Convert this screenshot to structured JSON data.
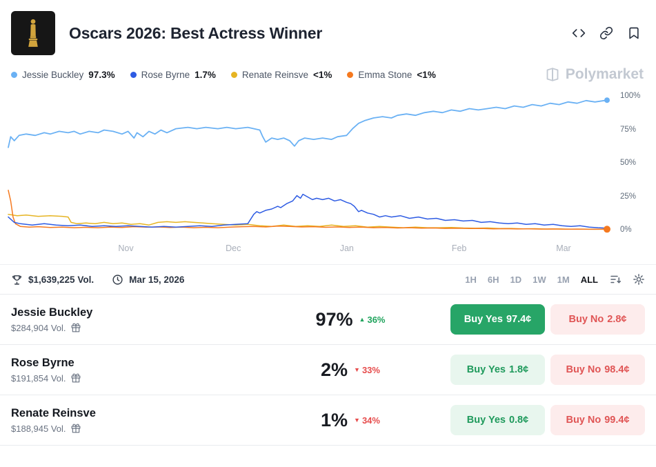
{
  "header": {
    "title": "Oscars 2026: Best Actress Winner"
  },
  "legend": [
    {
      "label": "Jessie Buckley",
      "value": "97.3%",
      "color": "#6ab1f4"
    },
    {
      "label": "Rose Byrne",
      "value": "1.7%",
      "color": "#2d5be3"
    },
    {
      "label": "Renate Reinsve",
      "value": "<1%",
      "color": "#e6b422"
    },
    {
      "label": "Emma Stone",
      "value": "<1%",
      "color": "#f5791f"
    }
  ],
  "watermark": {
    "text": "Polymarket"
  },
  "chart_data": {
    "type": "line",
    "ylim": [
      0,
      100
    ],
    "grid": false,
    "y_ticks": [
      {
        "label": "100%",
        "value": 100
      },
      {
        "label": "75%",
        "value": 75
      },
      {
        "label": "50%",
        "value": 50
      },
      {
        "label": "25%",
        "value": 25
      },
      {
        "label": "0%",
        "value": 0
      }
    ],
    "x_ticks": [
      {
        "label": "Nov",
        "pos": 0.196
      },
      {
        "label": "Dec",
        "pos": 0.373
      },
      {
        "label": "Jan",
        "pos": 0.56
      },
      {
        "label": "Feb",
        "pos": 0.745
      },
      {
        "label": "Mar",
        "pos": 0.917
      }
    ],
    "series": [
      {
        "name": "Renate Reinsve",
        "color": "#e6b422",
        "stroke_width": 1.5,
        "end_dot": false,
        "points": [
          [
            0,
            12
          ],
          [
            0.015,
            11
          ],
          [
            0.03,
            11.5
          ],
          [
            0.05,
            10.5
          ],
          [
            0.07,
            11
          ],
          [
            0.09,
            10.5
          ],
          [
            0.1,
            10
          ],
          [
            0.105,
            6
          ],
          [
            0.115,
            5
          ],
          [
            0.13,
            5.5
          ],
          [
            0.145,
            5
          ],
          [
            0.16,
            6
          ],
          [
            0.175,
            5
          ],
          [
            0.19,
            5.5
          ],
          [
            0.205,
            4.5
          ],
          [
            0.22,
            5
          ],
          [
            0.235,
            4
          ],
          [
            0.25,
            6
          ],
          [
            0.265,
            6.5
          ],
          [
            0.28,
            6
          ],
          [
            0.295,
            6.5
          ],
          [
            0.31,
            6
          ],
          [
            0.325,
            5.5
          ],
          [
            0.34,
            5
          ],
          [
            0.36,
            4.5
          ],
          [
            0.38,
            4
          ],
          [
            0.4,
            4.5
          ],
          [
            0.42,
            3.5
          ],
          [
            0.44,
            3
          ],
          [
            0.46,
            4
          ],
          [
            0.48,
            3
          ],
          [
            0.5,
            3.5
          ],
          [
            0.52,
            3
          ],
          [
            0.54,
            4
          ],
          [
            0.56,
            3
          ],
          [
            0.58,
            3.5
          ],
          [
            0.6,
            2.5
          ],
          [
            0.62,
            3
          ],
          [
            0.64,
            2.5
          ],
          [
            0.66,
            2
          ],
          [
            0.68,
            2.5
          ],
          [
            0.7,
            2
          ],
          [
            0.72,
            2
          ],
          [
            0.74,
            2.2
          ],
          [
            0.76,
            1.8
          ],
          [
            0.78,
            1.6
          ],
          [
            0.8,
            1.8
          ],
          [
            0.82,
            1.4
          ],
          [
            0.84,
            1.5
          ],
          [
            0.86,
            1.2
          ],
          [
            0.88,
            1.3
          ],
          [
            0.9,
            1
          ],
          [
            0.92,
            1.1
          ],
          [
            0.94,
            0.9
          ],
          [
            0.96,
            1
          ],
          [
            0.98,
            0.8
          ],
          [
            1,
            0.8
          ]
        ]
      },
      {
        "name": "Emma Stone",
        "color": "#f5791f",
        "stroke_width": 1.5,
        "end_dot": true,
        "dot_radius": 5,
        "points": [
          [
            0,
            30
          ],
          [
            0.004,
            22
          ],
          [
            0.008,
            10
          ],
          [
            0.012,
            5
          ],
          [
            0.02,
            3
          ],
          [
            0.035,
            2.5
          ],
          [
            0.05,
            2.8
          ],
          [
            0.07,
            2.2
          ],
          [
            0.09,
            2.5
          ],
          [
            0.11,
            2
          ],
          [
            0.13,
            2.3
          ],
          [
            0.15,
            2
          ],
          [
            0.17,
            2.5
          ],
          [
            0.19,
            2.2
          ],
          [
            0.21,
            2.8
          ],
          [
            0.23,
            2.4
          ],
          [
            0.25,
            2.6
          ],
          [
            0.27,
            2.2
          ],
          [
            0.29,
            2.5
          ],
          [
            0.31,
            2
          ],
          [
            0.33,
            2.3
          ],
          [
            0.35,
            2
          ],
          [
            0.37,
            2.4
          ],
          [
            0.39,
            2.8
          ],
          [
            0.41,
            3
          ],
          [
            0.43,
            2.6
          ],
          [
            0.45,
            3.2
          ],
          [
            0.47,
            3
          ],
          [
            0.49,
            2.6
          ],
          [
            0.51,
            2.8
          ],
          [
            0.53,
            2.3
          ],
          [
            0.55,
            2.6
          ],
          [
            0.57,
            2.2
          ],
          [
            0.59,
            2.4
          ],
          [
            0.61,
            2
          ],
          [
            0.63,
            2.2
          ],
          [
            0.65,
            1.8
          ],
          [
            0.67,
            2
          ],
          [
            0.69,
            1.7
          ],
          [
            0.71,
            1.8
          ],
          [
            0.73,
            1.5
          ],
          [
            0.75,
            1.6
          ],
          [
            0.77,
            1.4
          ],
          [
            0.79,
            1.5
          ],
          [
            0.81,
            1.2
          ],
          [
            0.83,
            1.3
          ],
          [
            0.85,
            1.1
          ],
          [
            0.87,
            1.2
          ],
          [
            0.89,
            1
          ],
          [
            0.91,
            1.1
          ],
          [
            0.93,
            0.9
          ],
          [
            0.95,
            1
          ],
          [
            0.97,
            0.8
          ],
          [
            0.99,
            0.9
          ],
          [
            1,
            0.9
          ]
        ]
      },
      {
        "name": "Rose Byrne",
        "color": "#2d5be3",
        "stroke_width": 1.5,
        "end_dot": false,
        "points": [
          [
            0,
            10
          ],
          [
            0.01,
            6
          ],
          [
            0.02,
            5
          ],
          [
            0.04,
            4
          ],
          [
            0.06,
            5
          ],
          [
            0.08,
            4
          ],
          [
            0.1,
            3.5
          ],
          [
            0.12,
            4
          ],
          [
            0.14,
            3
          ],
          [
            0.16,
            3.5
          ],
          [
            0.18,
            3
          ],
          [
            0.2,
            3.5
          ],
          [
            0.22,
            3
          ],
          [
            0.24,
            2.5
          ],
          [
            0.26,
            3
          ],
          [
            0.28,
            2.5
          ],
          [
            0.3,
            3
          ],
          [
            0.32,
            3.5
          ],
          [
            0.34,
            3
          ],
          [
            0.36,
            4
          ],
          [
            0.38,
            4.5
          ],
          [
            0.4,
            5
          ],
          [
            0.41,
            12
          ],
          [
            0.415,
            14
          ],
          [
            0.42,
            13
          ],
          [
            0.43,
            15
          ],
          [
            0.44,
            16
          ],
          [
            0.45,
            18
          ],
          [
            0.455,
            17
          ],
          [
            0.465,
            20
          ],
          [
            0.475,
            22
          ],
          [
            0.482,
            26
          ],
          [
            0.488,
            24
          ],
          [
            0.492,
            27
          ],
          [
            0.5,
            25
          ],
          [
            0.508,
            23
          ],
          [
            0.515,
            24
          ],
          [
            0.525,
            23
          ],
          [
            0.535,
            24
          ],
          [
            0.545,
            22
          ],
          [
            0.555,
            23
          ],
          [
            0.565,
            21
          ],
          [
            0.572,
            20
          ],
          [
            0.578,
            18
          ],
          [
            0.585,
            14
          ],
          [
            0.59,
            15
          ],
          [
            0.6,
            13
          ],
          [
            0.61,
            12
          ],
          [
            0.62,
            10
          ],
          [
            0.63,
            11
          ],
          [
            0.64,
            10
          ],
          [
            0.655,
            11
          ],
          [
            0.67,
            9
          ],
          [
            0.685,
            10
          ],
          [
            0.7,
            8.5
          ],
          [
            0.715,
            9
          ],
          [
            0.73,
            7.5
          ],
          [
            0.745,
            8
          ],
          [
            0.76,
            7
          ],
          [
            0.775,
            7.5
          ],
          [
            0.79,
            6
          ],
          [
            0.805,
            6.5
          ],
          [
            0.82,
            5.5
          ],
          [
            0.835,
            5
          ],
          [
            0.85,
            5.5
          ],
          [
            0.865,
            4.5
          ],
          [
            0.88,
            5
          ],
          [
            0.895,
            4
          ],
          [
            0.91,
            4.5
          ],
          [
            0.925,
            3.5
          ],
          [
            0.94,
            3
          ],
          [
            0.955,
            3.5
          ],
          [
            0.97,
            2.5
          ],
          [
            0.985,
            2
          ],
          [
            1,
            1.7
          ]
        ]
      },
      {
        "name": "Jessie Buckley",
        "color": "#6ab1f4",
        "stroke_width": 1.8,
        "end_dot": true,
        "dot_radius": 4,
        "points": [
          [
            0,
            62
          ],
          [
            0.004,
            70
          ],
          [
            0.01,
            67
          ],
          [
            0.018,
            71
          ],
          [
            0.03,
            72
          ],
          [
            0.045,
            71
          ],
          [
            0.06,
            73
          ],
          [
            0.07,
            72
          ],
          [
            0.085,
            74
          ],
          [
            0.1,
            73
          ],
          [
            0.11,
            74
          ],
          [
            0.12,
            72
          ],
          [
            0.135,
            74
          ],
          [
            0.15,
            73
          ],
          [
            0.16,
            75
          ],
          [
            0.175,
            74
          ],
          [
            0.19,
            72
          ],
          [
            0.2,
            74
          ],
          [
            0.21,
            69
          ],
          [
            0.215,
            73
          ],
          [
            0.225,
            70
          ],
          [
            0.235,
            74
          ],
          [
            0.245,
            72
          ],
          [
            0.255,
            75
          ],
          [
            0.265,
            73
          ],
          [
            0.28,
            76
          ],
          [
            0.3,
            77
          ],
          [
            0.315,
            76
          ],
          [
            0.33,
            77
          ],
          [
            0.35,
            76
          ],
          [
            0.365,
            77
          ],
          [
            0.38,
            76
          ],
          [
            0.4,
            77
          ],
          [
            0.42,
            75
          ],
          [
            0.425,
            70
          ],
          [
            0.43,
            66
          ],
          [
            0.44,
            69
          ],
          [
            0.45,
            68
          ],
          [
            0.46,
            69
          ],
          [
            0.47,
            67
          ],
          [
            0.478,
            63
          ],
          [
            0.485,
            67
          ],
          [
            0.495,
            69
          ],
          [
            0.51,
            68
          ],
          [
            0.525,
            69
          ],
          [
            0.54,
            68
          ],
          [
            0.55,
            70
          ],
          [
            0.565,
            71
          ],
          [
            0.575,
            76
          ],
          [
            0.585,
            80
          ],
          [
            0.595,
            82
          ],
          [
            0.61,
            84
          ],
          [
            0.625,
            85
          ],
          [
            0.64,
            84
          ],
          [
            0.65,
            86
          ],
          [
            0.665,
            87
          ],
          [
            0.68,
            86
          ],
          [
            0.695,
            88
          ],
          [
            0.71,
            89
          ],
          [
            0.725,
            88
          ],
          [
            0.74,
            90
          ],
          [
            0.755,
            89
          ],
          [
            0.77,
            91
          ],
          [
            0.785,
            90
          ],
          [
            0.8,
            91
          ],
          [
            0.815,
            92
          ],
          [
            0.83,
            91
          ],
          [
            0.845,
            93
          ],
          [
            0.86,
            92
          ],
          [
            0.875,
            94
          ],
          [
            0.89,
            93
          ],
          [
            0.905,
            95
          ],
          [
            0.92,
            94
          ],
          [
            0.935,
            96
          ],
          [
            0.95,
            95
          ],
          [
            0.965,
            97
          ],
          [
            0.98,
            96
          ],
          [
            1,
            97.3
          ]
        ]
      }
    ]
  },
  "stats_bar": {
    "volume": "$1,639,225 Vol.",
    "date": "Mar 15, 2026",
    "ranges": [
      "1H",
      "6H",
      "1D",
      "1W",
      "1M",
      "ALL"
    ],
    "active_range": "ALL"
  },
  "outcomes": [
    {
      "name": "Jessie Buckley",
      "volume": "$284,904 Vol.",
      "chance": "97%",
      "arrow": "▲",
      "change": "36%",
      "direction": "up",
      "yes_label": "Buy Yes",
      "yes_price": "97.4¢",
      "no_label": "Buy No",
      "no_price": "2.8¢"
    },
    {
      "name": "Rose Byrne",
      "volume": "$191,854 Vol.",
      "chance": "2%",
      "arrow": "▼",
      "change": "33%",
      "direction": "down",
      "yes_label": "Buy Yes",
      "yes_price": "1.8¢",
      "no_label": "Buy No",
      "no_price": "98.4¢"
    },
    {
      "name": "Renate Reinsve",
      "volume": "$188,945 Vol.",
      "chance": "1%",
      "arrow": "▼",
      "change": "34%",
      "direction": "down",
      "yes_label": "Buy Yes",
      "yes_price": "0.8¢",
      "no_label": "Buy No",
      "no_price": "99.4¢"
    }
  ],
  "colors": {
    "buy_yes_solid": "#27a567",
    "buy_yes_light_bg": "#e8f6ee",
    "buy_no_light_bg": "#fdecec",
    "positive_green": "#1fa35c",
    "negative_red": "#e64c4c"
  }
}
